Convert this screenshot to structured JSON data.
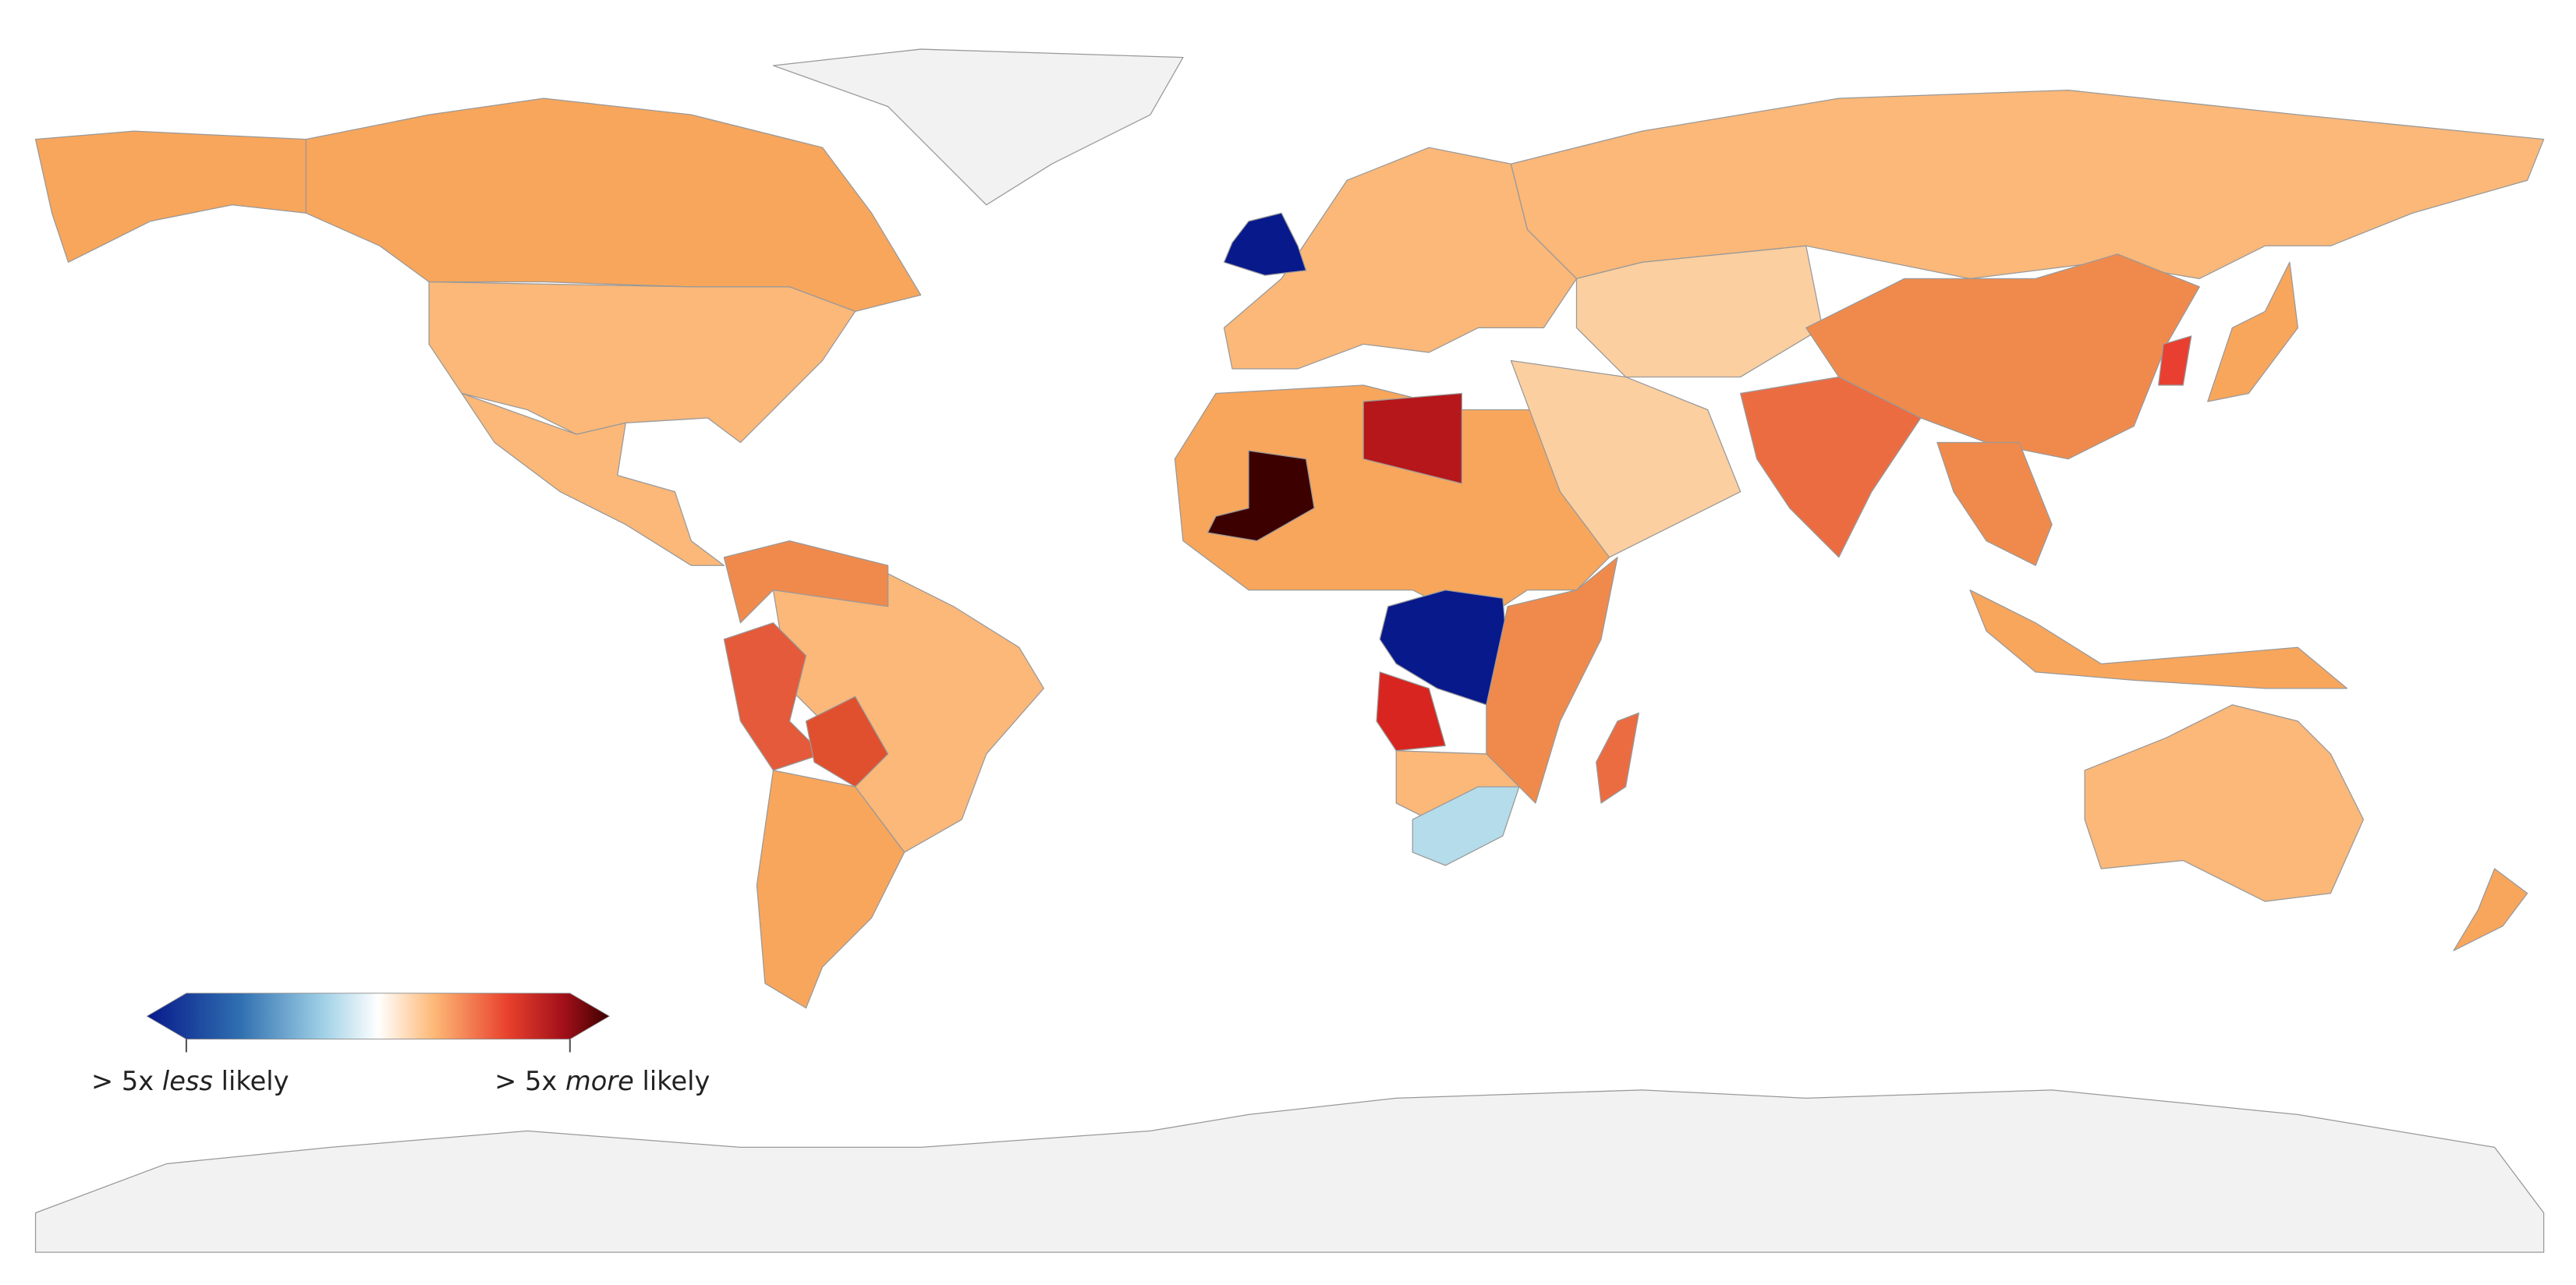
{
  "legend": {
    "left": [
      "> 5x",
      "less",
      "likely"
    ],
    "right": [
      "> 5x",
      "more",
      "likely"
    ]
  }
}
